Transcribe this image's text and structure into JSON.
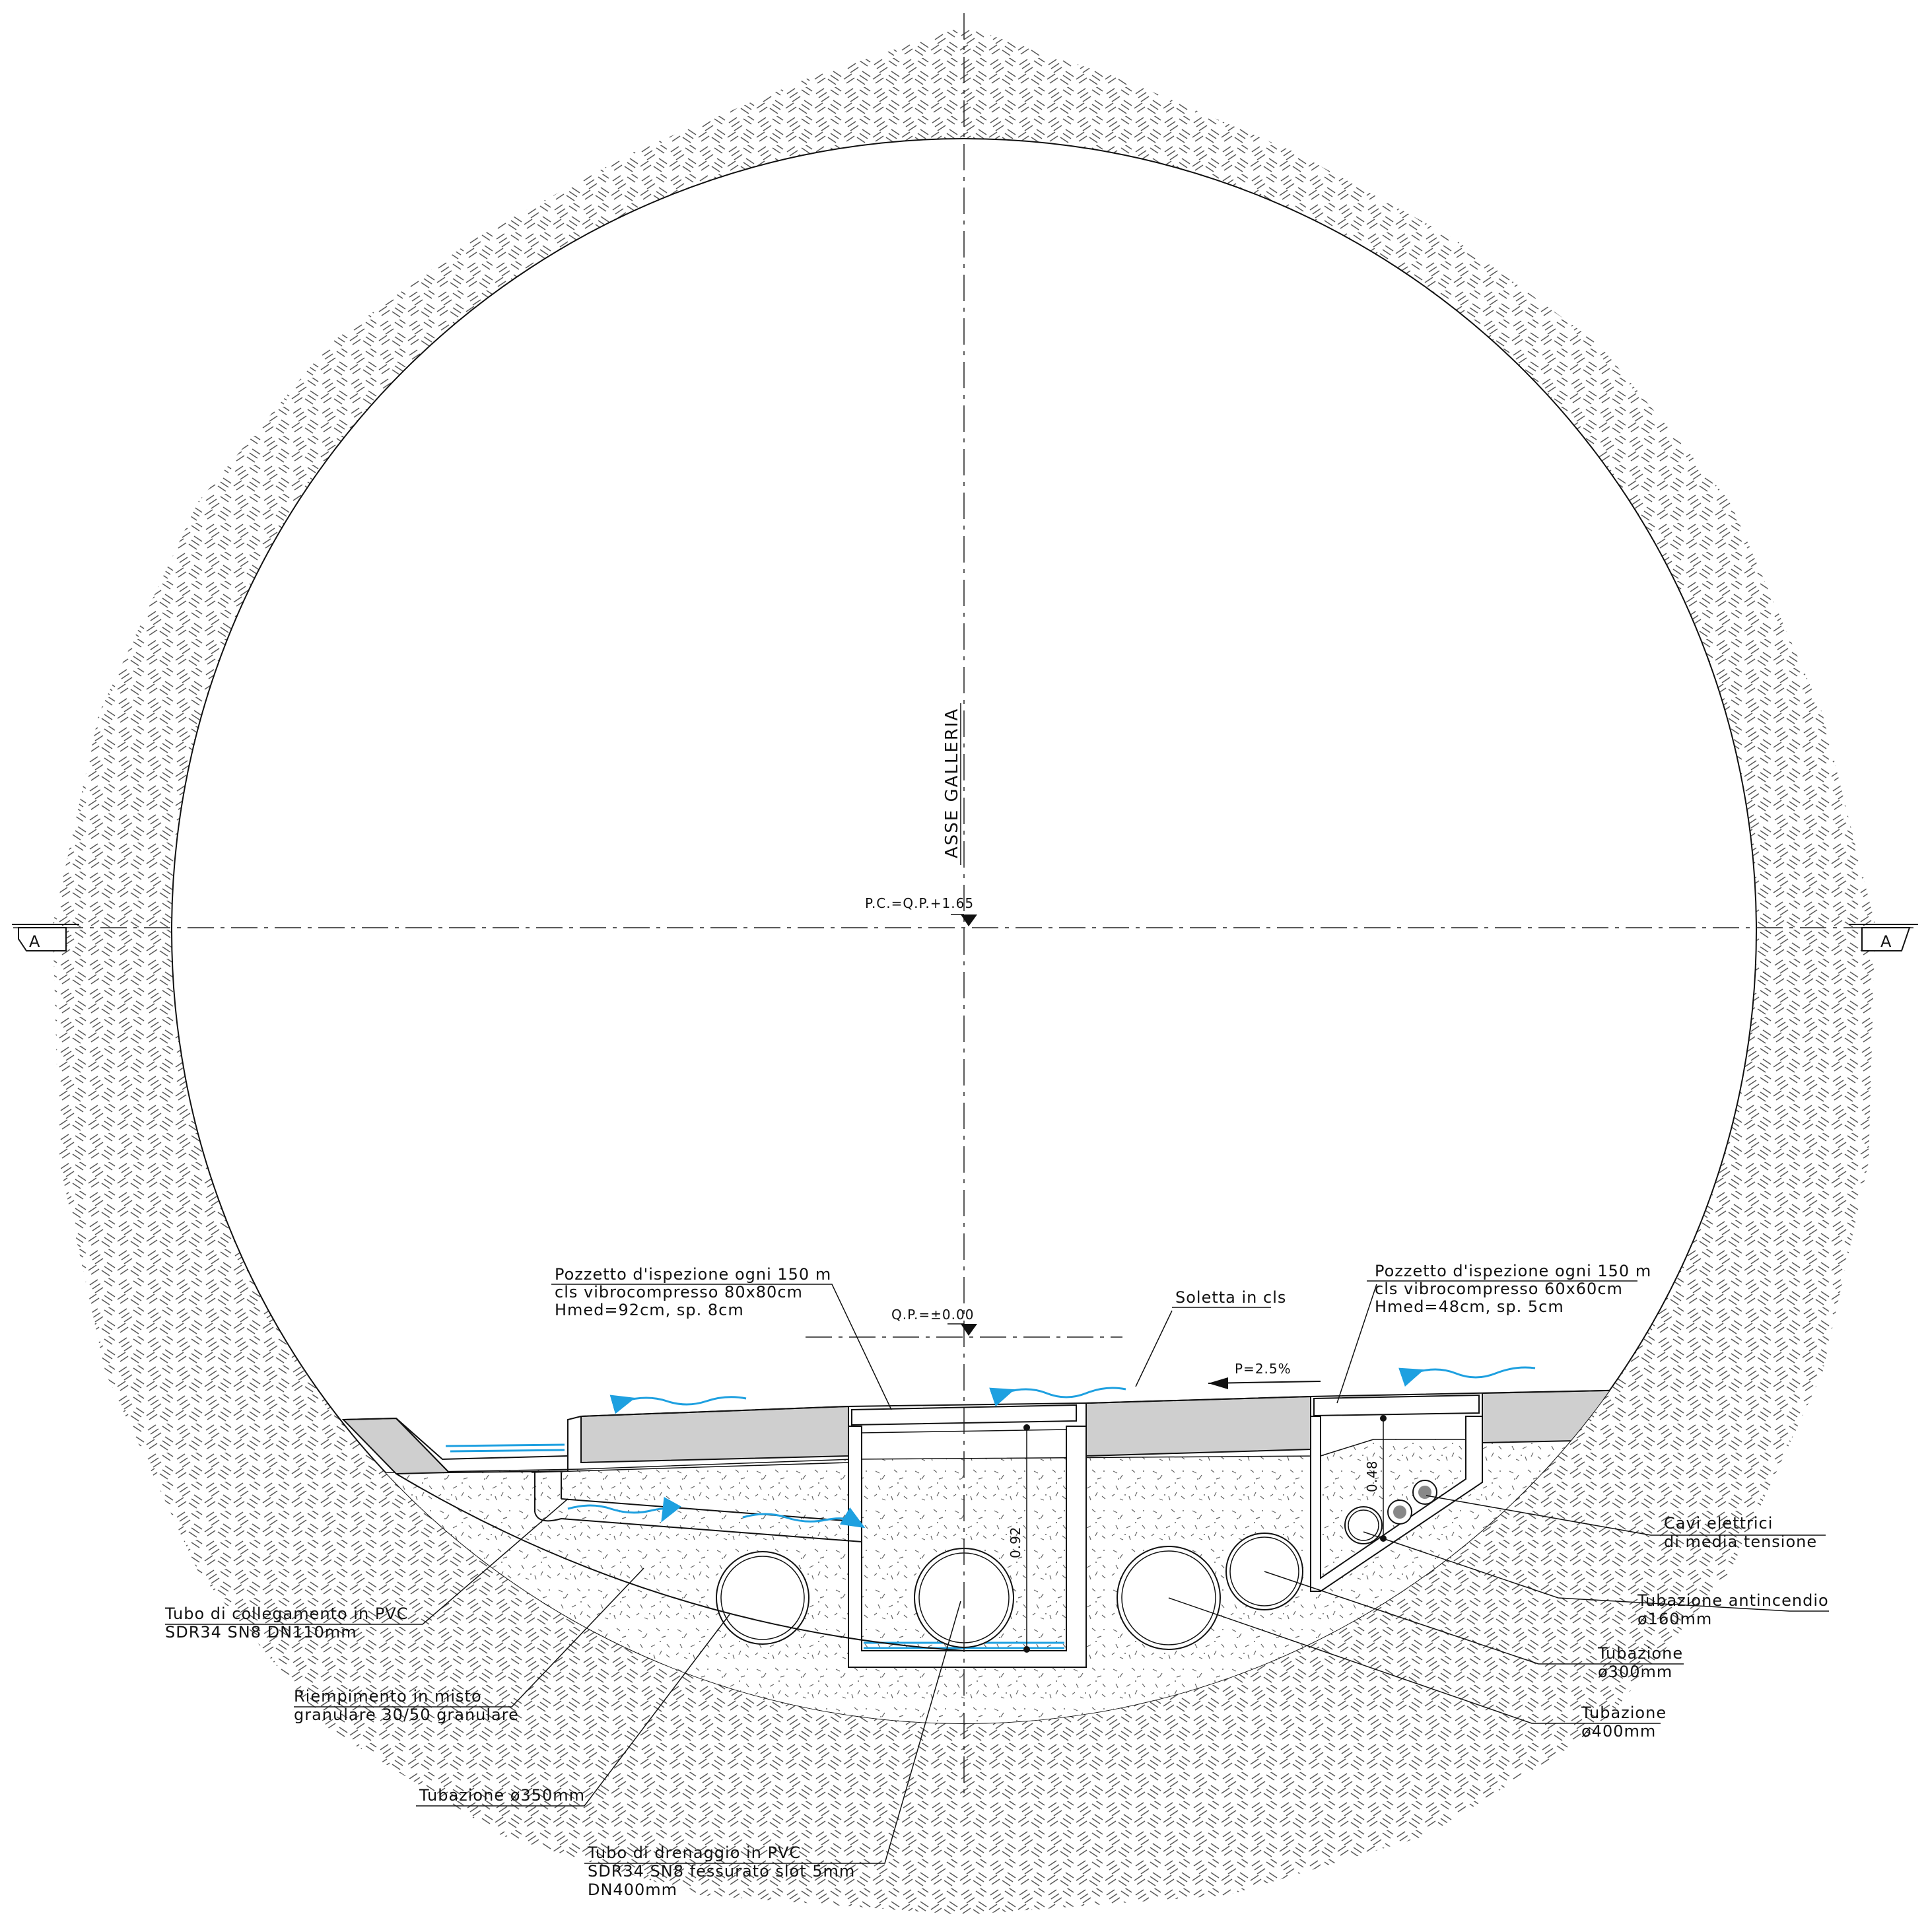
{
  "axis": {
    "label": "ASSE GALLERIA",
    "elevation_top": "P.C.=Q.P.+1.65",
    "elevation_bottom": "Q.P.=±0.00"
  },
  "section_marks": {
    "left": "A",
    "right": "A"
  },
  "slope": "P=2.5%",
  "dimensions": {
    "left_chamber_height": "0.92",
    "right_chamber_height": "0.48"
  },
  "labels": {
    "left_manhole": [
      "Pozzetto d'ispezione ogni 150 m",
      "cls vibrocompresso 80x80cm",
      "Hmed=92cm, sp. 8cm"
    ],
    "right_manhole": [
      "Pozzetto d'ispezione ogni 150 m",
      "cls vibrocompresso 60x60cm",
      "Hmed=48cm, sp. 5cm"
    ],
    "slab": "Soletta in cls",
    "pvc_connection": [
      "Tubo di collegamento in PVC",
      "SDR34 SN8 DN110mm"
    ],
    "fill": [
      "Riempimento in misto",
      "granulare 30/50 granulare"
    ],
    "pipe_350": "Tubazione ø350mm",
    "drain_pipe": [
      "Tubo di drenaggio in PVC",
      "SDR34 SN8 fessurato slot 5mm",
      "DN400mm"
    ],
    "cables": [
      "Cavi elettrici",
      "di media tensione"
    ],
    "fire_pipe": [
      "Tubazione antincendio",
      "ø160mm"
    ],
    "pipe_300": [
      "Tubazione",
      "ø300mm"
    ],
    "pipe_400": [
      "Tubazione",
      "ø400mm"
    ]
  },
  "colors": {
    "water": "#1ea0e0",
    "slab": "#cfcfcf",
    "rock_hatch": "#555555",
    "line": "#111111"
  }
}
